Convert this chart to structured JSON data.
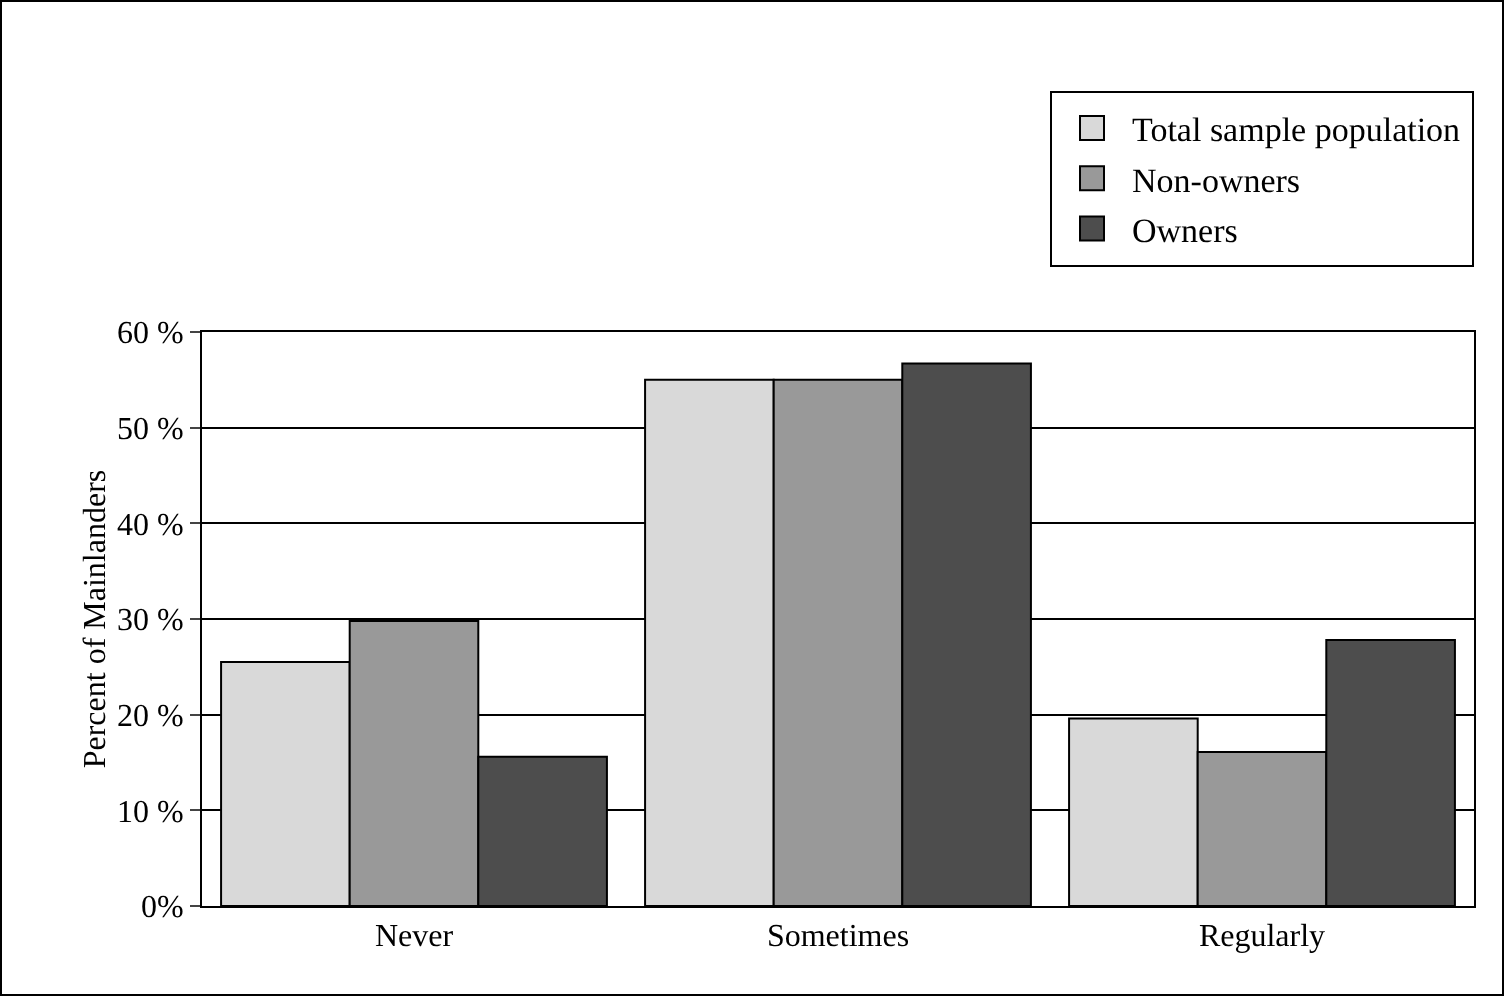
{
  "chart_data": {
    "type": "bar",
    "ylabel": "Percent of Mainlanders",
    "categories": [
      "Never",
      "Sometimes",
      "Regularly"
    ],
    "series": [
      {
        "name": "Total sample population",
        "color": "#d9d9d9",
        "values": [
          25.5,
          55,
          19.6
        ]
      },
      {
        "name": "Non-owners",
        "color": "#999999",
        "values": [
          29.8,
          55,
          16.1
        ]
      },
      {
        "name": "Owners",
        "color": "#4d4d4d",
        "values": [
          15.6,
          56.7,
          27.8
        ]
      }
    ],
    "ylim": [
      0,
      60
    ],
    "yticks": [
      {
        "value": 0,
        "label": "0%"
      },
      {
        "value": 10,
        "label": "10 %"
      },
      {
        "value": 20,
        "label": "20 %"
      },
      {
        "value": 30,
        "label": "30 %"
      },
      {
        "value": 40,
        "label": "40 %"
      },
      {
        "value": 50,
        "label": "50 %"
      },
      {
        "value": 60,
        "label": "60 %"
      }
    ],
    "grid": "y",
    "legend": "top right"
  }
}
